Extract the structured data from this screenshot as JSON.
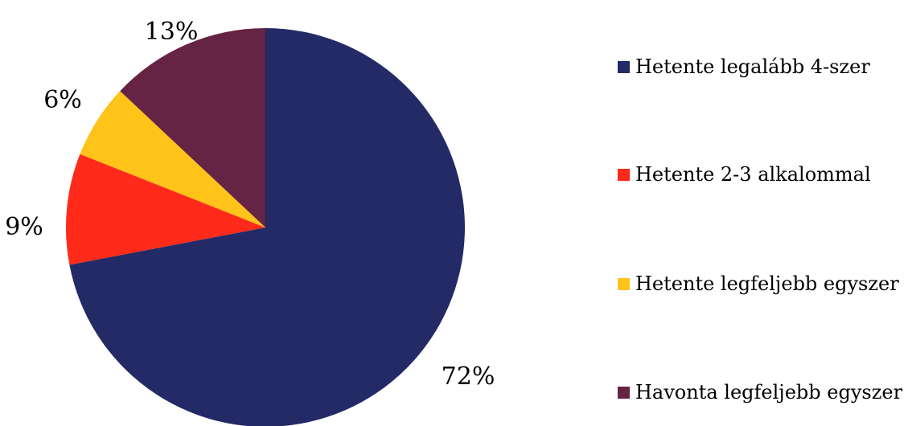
{
  "chart_data": {
    "type": "pie",
    "title": "",
    "legend_position": "right",
    "start_angle": "12 o'clock",
    "direction": "clockwise",
    "slices": [
      {
        "label": "Hetente legalább 4-szer",
        "value": 72,
        "display": "72%",
        "color": "#232A66"
      },
      {
        "label": "Hetente 2-3 alkalommal",
        "value": 9,
        "display": "9%",
        "color": "#FF2A1A"
      },
      {
        "label": "Hetente legfeljebb egyszer",
        "value": 6,
        "display": "6%",
        "color": "#FFC31A"
      },
      {
        "label": "Havonta legfeljebb egyszer",
        "value": 13,
        "display": "13%",
        "color": "#662444"
      }
    ]
  }
}
